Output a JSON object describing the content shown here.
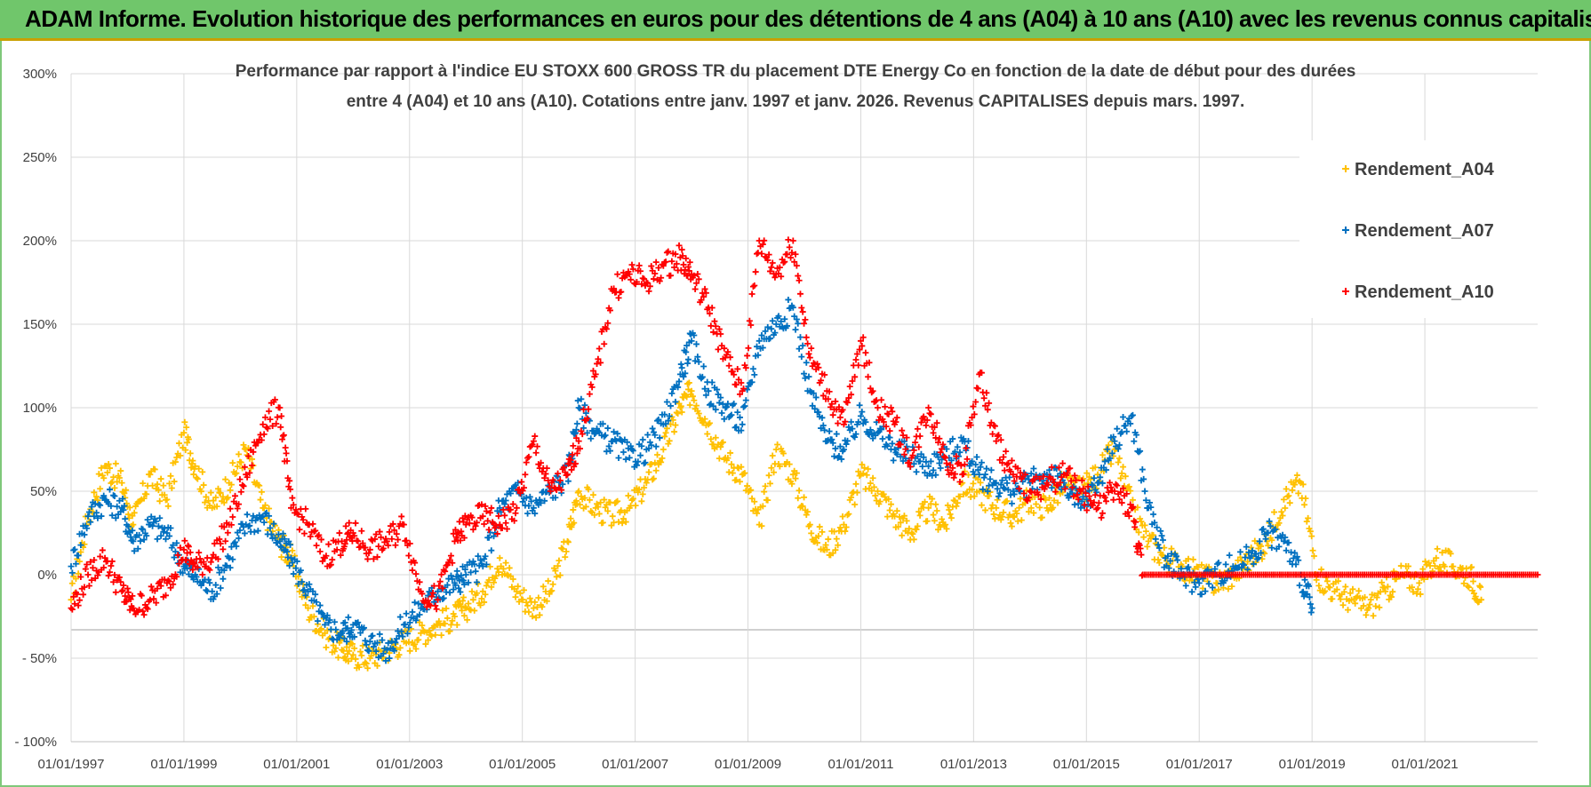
{
  "header": {
    "title": "ADAM Informe. Evolution historique des performances en euros pour des détentions de 4 ans (A04) à 10 ans (A10) avec les revenus connus capitalisés"
  },
  "colors": {
    "header_bg": "#70c66b",
    "a04": "#ffc000",
    "a07": "#0070c0",
    "a10": "#ff0000",
    "grid": "#d9d9d9"
  },
  "chart_data": {
    "type": "scatter",
    "title_line1": "Performance par rapport à l'indice EU STOXX 600 GROSS TR  du placement DTE Energy Co en fonction de la date de début pour des durées",
    "title_line2": "entre 4 (A04) et 10 ans (A10). Cotations entre janv. 1997 et janv. 2026. Revenus CAPITALISES depuis mars. 1997.",
    "xlabel": "",
    "ylabel": "",
    "ylim": [
      -100,
      300
    ],
    "xlim": [
      1997.0,
      2023.0
    ],
    "y_ticks": [
      300,
      250,
      200,
      150,
      100,
      50,
      0,
      -50,
      -100
    ],
    "y_tick_labels": [
      "300%",
      "250%",
      "200%",
      "150%",
      "100%",
      "50%",
      "0%",
      "- 50%",
      "- 100%"
    ],
    "x_ticks": [
      1997,
      1999,
      2001,
      2003,
      2005,
      2007,
      2009,
      2011,
      2013,
      2015,
      2017,
      2019,
      2021
    ],
    "x_tick_labels": [
      "01/01/1997",
      "01/01/1999",
      "01/01/2001",
      "01/01/2003",
      "01/01/2005",
      "01/01/2007",
      "01/01/2009",
      "01/01/2011",
      "01/01/2013",
      "01/01/2015",
      "01/01/2017",
      "01/01/2019",
      "01/01/2021"
    ],
    "legend_position": "top-right",
    "series": [
      {
        "name": "Rendement_A04",
        "color": "#ffc000",
        "x": [
          1997.0,
          1997.3,
          1997.6,
          1997.9,
          1998.1,
          1998.4,
          1998.7,
          1999.0,
          1999.2,
          1999.5,
          1999.8,
          2000.1,
          2000.4,
          2000.7,
          2000.9,
          2001.2,
          2001.5,
          2001.8,
          2002.0,
          2002.3,
          2002.6,
          2002.9,
          2003.2,
          2003.5,
          2003.8,
          2004.0,
          2004.3,
          2004.6,
          2004.9,
          2005.2,
          2005.5,
          2005.8,
          2006.0,
          2006.3,
          2006.6,
          2006.9,
          2007.2,
          2007.5,
          2007.8,
          2008.0,
          2008.3,
          2008.6,
          2008.9,
          2009.2,
          2009.5,
          2009.8,
          2010.1,
          2010.4,
          2010.7,
          2011.0,
          2011.3,
          2011.6,
          2011.9,
          2012.2,
          2012.5,
          2012.8,
          2013.1,
          2013.4,
          2013.7,
          2014.0,
          2014.3,
          2014.6,
          2014.9,
          2015.2,
          2015.5,
          2015.8,
          2016.1,
          2016.4,
          2016.7,
          2017.0,
          2017.3,
          2017.6,
          2017.9,
          2018.2,
          2018.5,
          2018.8,
          2019.1,
          2019.4,
          2019.7,
          2020.0,
          2020.3,
          2020.6,
          2020.9,
          2021.2,
          2021.5,
          2021.8,
          2022.0
        ],
        "y": [
          -15,
          35,
          65,
          55,
          30,
          60,
          45,
          85,
          65,
          40,
          55,
          75,
          40,
          20,
          10,
          -20,
          -35,
          -45,
          -48,
          -50,
          -45,
          -40,
          -35,
          -30,
          -25,
          -20,
          -10,
          10,
          -10,
          -20,
          -10,
          20,
          50,
          40,
          35,
          40,
          55,
          75,
          100,
          110,
          90,
          70,
          60,
          30,
          75,
          60,
          30,
          15,
          30,
          60,
          50,
          35,
          25,
          40,
          30,
          55,
          50,
          40,
          35,
          45,
          40,
          55,
          50,
          60,
          75,
          40,
          20,
          10,
          5,
          0,
          -5,
          0,
          10,
          20,
          45,
          55,
          0,
          -10,
          -15,
          -20,
          -10,
          0,
          -5,
          10,
          5,
          0,
          -15
        ]
      },
      {
        "name": "Rendement_A07",
        "color": "#0070c0",
        "x": [
          1997.0,
          1997.3,
          1997.6,
          1997.9,
          1998.1,
          1998.4,
          1998.7,
          1999.0,
          1999.2,
          1999.5,
          1999.8,
          2000.1,
          2000.4,
          2000.7,
          2000.9,
          2001.2,
          2001.5,
          2001.8,
          2002.0,
          2002.3,
          2002.6,
          2002.9,
          2003.2,
          2003.5,
          2003.8,
          2004.0,
          2004.3,
          2004.6,
          2004.9,
          2005.2,
          2005.5,
          2005.8,
          2006.0,
          2006.3,
          2006.6,
          2006.9,
          2007.2,
          2007.5,
          2007.8,
          2008.0,
          2008.3,
          2008.6,
          2008.9,
          2009.2,
          2009.5,
          2009.8,
          2010.1,
          2010.4,
          2010.7,
          2011.0,
          2011.3,
          2011.6,
          2011.9,
          2012.2,
          2012.5,
          2012.8,
          2013.1,
          2013.4,
          2013.7,
          2014.0,
          2014.3,
          2014.6,
          2014.9,
          2015.2,
          2015.5,
          2015.8,
          2016.1,
          2016.4,
          2016.7,
          2017.0,
          2017.3,
          2017.6,
          2017.9,
          2018.2,
          2018.5,
          2018.8,
          2019.0
        ],
        "y": [
          5,
          35,
          45,
          40,
          20,
          30,
          25,
          5,
          0,
          -10,
          10,
          30,
          35,
          20,
          10,
          -10,
          -30,
          -35,
          -30,
          -40,
          -45,
          -30,
          -20,
          -10,
          -5,
          0,
          5,
          40,
          50,
          40,
          50,
          60,
          100,
          85,
          80,
          70,
          75,
          90,
          120,
          140,
          110,
          100,
          90,
          140,
          150,
          160,
          110,
          80,
          75,
          95,
          85,
          75,
          70,
          65,
          70,
          80,
          60,
          55,
          50,
          55,
          60,
          55,
          40,
          55,
          80,
          95,
          40,
          10,
          0,
          -5,
          0,
          5,
          10,
          25,
          20,
          0,
          -20
        ]
      },
      {
        "name": "Rendement_A10",
        "color": "#ff0000",
        "x": [
          1997.0,
          1997.3,
          1997.6,
          1997.9,
          1998.1,
          1998.4,
          1998.7,
          1999.0,
          1999.2,
          1999.5,
          1999.8,
          2000.1,
          2000.4,
          2000.7,
          2000.9,
          2001.2,
          2001.5,
          2001.8,
          2002.0,
          2002.3,
          2002.6,
          2002.9,
          2003.2,
          2003.5,
          2003.8,
          2004.0,
          2004.3,
          2004.6,
          2004.9,
          2005.2,
          2005.5,
          2005.8,
          2006.0,
          2006.3,
          2006.6,
          2006.9,
          2007.2,
          2007.5,
          2007.8,
          2008.0,
          2008.3,
          2008.6,
          2008.9,
          2009.2,
          2009.5,
          2009.8,
          2010.1,
          2010.4,
          2010.7,
          2011.0,
          2011.3,
          2011.6,
          2011.9,
          2012.2,
          2012.5,
          2012.8,
          2013.1,
          2013.4,
          2013.7,
          2014.0,
          2014.3,
          2014.6,
          2014.9,
          2015.2,
          2015.5,
          2015.8,
          2016.0,
          2016.5,
          2017.0,
          2017.5,
          2018.0,
          2018.5,
          2019.0,
          2019.5,
          2020.0,
          2020.5,
          2021.0,
          2021.5,
          2022.0,
          2022.5,
          2023.0
        ],
        "y": [
          -20,
          0,
          10,
          -10,
          -20,
          -15,
          -5,
          15,
          5,
          10,
          30,
          60,
          90,
          100,
          40,
          30,
          10,
          20,
          25,
          15,
          20,
          30,
          -10,
          -15,
          20,
          30,
          35,
          30,
          40,
          80,
          50,
          60,
          80,
          120,
          170,
          180,
          175,
          185,
          190,
          180,
          160,
          130,
          110,
          200,
          180,
          200,
          130,
          110,
          90,
          140,
          100,
          90,
          70,
          100,
          70,
          60,
          120,
          80,
          60,
          50,
          55,
          60,
          50,
          40,
          50,
          40,
          0,
          0,
          0,
          0,
          0,
          0,
          0,
          0,
          0,
          0,
          0,
          0,
          0,
          0,
          0
        ]
      }
    ]
  }
}
